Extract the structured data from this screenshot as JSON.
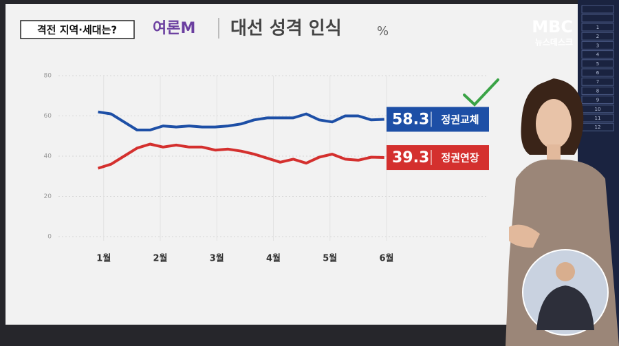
{
  "caption": "격전 지역·세대는?",
  "brand": "여론M",
  "broadcaster": {
    "logo": "MBC",
    "program": "뉴스데스크"
  },
  "side_index": [
    1,
    2,
    3,
    4,
    5,
    6,
    7,
    8,
    9,
    10,
    11,
    12
  ],
  "chart_data": {
    "type": "line",
    "title": "대선 성격 인식",
    "unit": "%",
    "x": [
      0.9,
      1.13,
      1.36,
      1.59,
      1.82,
      2.05,
      2.28,
      2.51,
      2.74,
      2.97,
      3.2,
      3.43,
      3.66,
      3.89,
      4.12,
      4.35,
      4.58,
      4.81,
      5.04,
      5.27,
      5.5,
      5.73,
      5.96
    ],
    "xlim": [
      0.2,
      7.8
    ],
    "xticks": [
      {
        "value": 1,
        "label": "1월"
      },
      {
        "value": 2,
        "label": "2월"
      },
      {
        "value": 3,
        "label": "3월"
      },
      {
        "value": 4,
        "label": "4월"
      },
      {
        "value": 5,
        "label": "5월"
      },
      {
        "value": 6,
        "label": "6월"
      }
    ],
    "ylim": [
      0,
      80
    ],
    "yticks": [
      0,
      20,
      40,
      60,
      80
    ],
    "grid": true,
    "series": [
      {
        "name": "정권교체",
        "color": "#1d4fa6",
        "values": [
          62,
          61,
          57,
          53,
          53,
          55,
          54.5,
          55,
          54.5,
          54.5,
          55,
          56,
          58,
          59,
          59,
          59,
          61,
          58,
          57,
          60,
          60,
          58,
          58.3
        ]
      },
      {
        "name": "정권연장",
        "color": "#d4302e",
        "values": [
          34,
          36,
          40,
          44,
          46,
          44.5,
          45.5,
          44.5,
          44.5,
          43,
          43.5,
          42.5,
          41,
          39,
          37,
          38.5,
          36.5,
          39.5,
          41,
          38.5,
          38,
          39.5,
          39.3
        ]
      }
    ]
  }
}
